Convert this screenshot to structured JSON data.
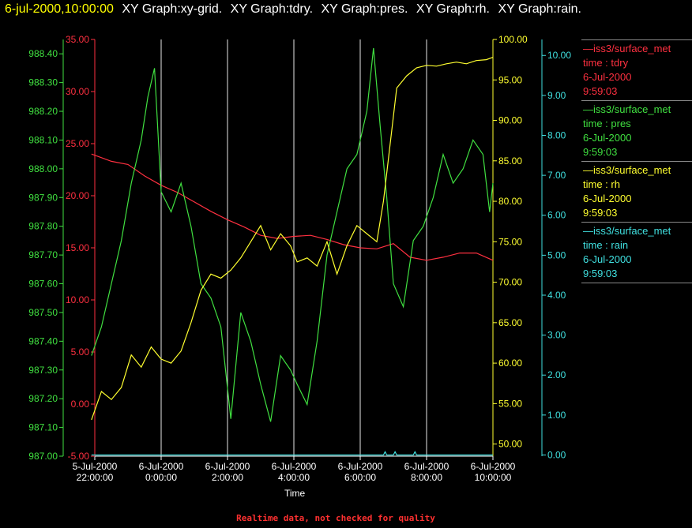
{
  "header": {
    "timestamp": "6-jul-2000,10:00:00",
    "graph_titles": [
      "XY Graph:xy-grid.",
      "XY Graph:tdry.",
      "XY Graph:pres.",
      "XY Graph:rh.",
      "XY Graph:rain."
    ]
  },
  "legend": [
    {
      "line1": "iss3/surface_met",
      "line2": "time : tdry",
      "line3": "6-Jul-2000",
      "line4": "9:59:03",
      "color": "#ff3040"
    },
    {
      "line1": "iss3/surface_met",
      "line2": "time : pres",
      "line3": "6-Jul-2000",
      "line4": "9:59:03",
      "color": "#40e040"
    },
    {
      "line1": "iss3/surface_met",
      "line2": "time : rh",
      "line3": "6-Jul-2000",
      "line4": "9:59:03",
      "color": "#ffff30"
    },
    {
      "line1": "iss3/surface_met",
      "line2": "time : rain",
      "line3": "6-Jul-2000",
      "line4": "9:59:03",
      "color": "#40e0e0"
    }
  ],
  "footer": "Realtime data, not checked for quality",
  "chart_data": {
    "type": "line",
    "xlabel": "Time",
    "x_range": [
      22,
      34
    ],
    "x_ticks": [
      {
        "x": 22,
        "date": "5-Jul-2000",
        "time": "22:00:00"
      },
      {
        "x": 24,
        "date": "6-Jul-2000",
        "time": "0:00:00"
      },
      {
        "x": 26,
        "date": "6-Jul-2000",
        "time": "2:00:00"
      },
      {
        "x": 28,
        "date": "6-Jul-2000",
        "time": "4:00:00"
      },
      {
        "x": 30,
        "date": "6-Jul-2000",
        "time": "6:00:00"
      },
      {
        "x": 32,
        "date": "6-Jul-2000",
        "time": "8:00:00"
      },
      {
        "x": 34,
        "date": "6-Jul-2000",
        "time": "10:00:00"
      }
    ],
    "grid": "vertical",
    "axes": {
      "pres": {
        "range": [
          987.0,
          988.45
        ],
        "ticks": [
          987.0,
          987.1,
          987.2,
          987.3,
          987.4,
          987.5,
          987.6,
          987.7,
          987.8,
          987.9,
          988.0,
          988.1,
          988.2,
          988.3,
          988.4
        ],
        "color": "#40e040"
      },
      "tdry": {
        "range": [
          -5,
          35
        ],
        "ticks": [
          -5,
          0,
          5,
          10,
          15,
          20,
          25,
          30,
          35
        ],
        "color": "#ff3040"
      },
      "rh": {
        "range": [
          48.5,
          100
        ],
        "ticks": [
          50,
          55,
          60,
          65,
          70,
          75,
          80,
          85,
          90,
          95,
          100
        ],
        "color": "#ffff30"
      },
      "rain": {
        "range": [
          -0.03,
          10.4
        ],
        "ticks": [
          0,
          1,
          2,
          3,
          4,
          5,
          6,
          7,
          8,
          9,
          10
        ],
        "color": "#40e0e0"
      }
    },
    "series": [
      {
        "name": "tdry",
        "axis": "tdry",
        "x": [
          21.9,
          22.5,
          23.0,
          23.5,
          24.0,
          24.5,
          25.0,
          25.5,
          26.0,
          26.5,
          27.0,
          27.5,
          28.0,
          28.5,
          29.0,
          29.5,
          30.0,
          30.5,
          31.0,
          31.5,
          32.0,
          32.5,
          33.0,
          33.5,
          34.0
        ],
        "y": [
          24.0,
          23.3,
          23.0,
          21.9,
          21.0,
          20.3,
          19.4,
          18.5,
          17.7,
          17.0,
          16.2,
          15.9,
          16.1,
          16.2,
          15.8,
          15.3,
          15.0,
          14.9,
          15.4,
          14.1,
          13.8,
          14.1,
          14.5,
          14.5,
          13.8
        ]
      },
      {
        "name": "pres",
        "axis": "pres",
        "x": [
          21.9,
          22.2,
          22.5,
          22.8,
          23.1,
          23.4,
          23.6,
          23.8,
          24.0,
          24.3,
          24.6,
          24.9,
          25.2,
          25.5,
          25.8,
          26.1,
          26.4,
          26.7,
          27.0,
          27.3,
          27.6,
          27.9,
          28.1,
          28.4,
          28.7,
          29.0,
          29.3,
          29.6,
          29.9,
          30.2,
          30.4,
          30.6,
          30.8,
          31.0,
          31.3,
          31.6,
          31.9,
          32.2,
          32.5,
          32.8,
          33.1,
          33.4,
          33.7,
          33.9,
          34.0
        ],
        "y": [
          987.35,
          987.45,
          987.6,
          987.75,
          987.95,
          988.1,
          988.25,
          988.35,
          987.92,
          987.85,
          987.95,
          987.8,
          987.6,
          987.55,
          987.45,
          987.13,
          987.5,
          987.4,
          987.25,
          987.12,
          987.35,
          987.3,
          987.25,
          987.18,
          987.4,
          987.7,
          987.85,
          988.0,
          988.05,
          988.2,
          988.42,
          988.15,
          987.9,
          987.6,
          987.52,
          987.75,
          987.8,
          987.9,
          988.05,
          987.95,
          988.0,
          988.1,
          988.05,
          987.85,
          987.95
        ]
      },
      {
        "name": "rh",
        "axis": "rh",
        "x": [
          21.9,
          22.2,
          22.5,
          22.8,
          23.1,
          23.4,
          23.7,
          24.0,
          24.3,
          24.6,
          24.9,
          25.2,
          25.5,
          25.8,
          26.1,
          26.4,
          26.7,
          27.0,
          27.3,
          27.6,
          27.9,
          28.1,
          28.4,
          28.7,
          29.0,
          29.3,
          29.6,
          29.9,
          30.2,
          30.5,
          30.7,
          30.9,
          31.1,
          31.4,
          31.7,
          32.0,
          32.3,
          32.6,
          32.9,
          33.2,
          33.5,
          33.8,
          34.0
        ],
        "y": [
          53.0,
          56.5,
          55.5,
          57.0,
          61.0,
          59.5,
          62.0,
          60.5,
          60.0,
          61.5,
          65.0,
          69.0,
          71.0,
          70.5,
          71.5,
          73.0,
          75.0,
          77.0,
          74.0,
          76.0,
          74.5,
          72.5,
          73.0,
          72.0,
          75.0,
          71.0,
          74.5,
          77.0,
          76.0,
          75.0,
          80.0,
          87.0,
          94.0,
          95.5,
          96.5,
          96.8,
          96.7,
          97.0,
          97.2,
          97.0,
          97.4,
          97.5,
          97.8
        ]
      },
      {
        "name": "rain",
        "axis": "rain",
        "x": [
          21.9,
          24.0,
          26.0,
          28.0,
          30.0,
          30.7,
          30.75,
          30.8,
          31.0,
          31.05,
          31.1,
          31.6,
          31.65,
          31.7,
          34.0
        ],
        "y": [
          0.0,
          0.0,
          0.0,
          0.0,
          0.0,
          0.0,
          0.08,
          0.0,
          0.0,
          0.08,
          0.0,
          0.0,
          0.08,
          0.0,
          0.0
        ]
      }
    ]
  }
}
